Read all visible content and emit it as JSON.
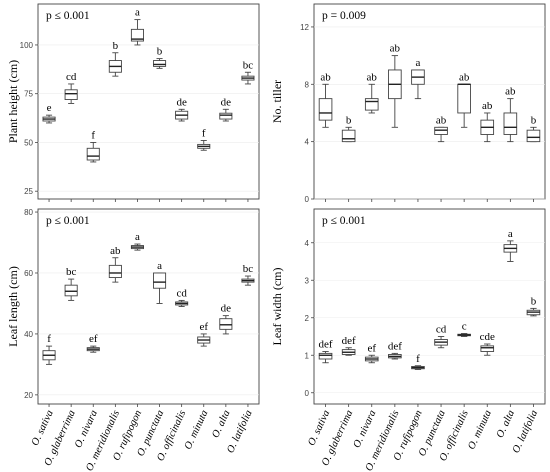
{
  "chart_data": [
    {
      "type": "box",
      "ylabel": "Plant height (cm)",
      "annotation": "p ≤ 0.001",
      "ylim": [
        21,
        121
      ],
      "yticks": [
        25,
        50,
        75,
        100
      ],
      "categories": [
        "O. sativa",
        "O. glaberrima",
        "O. nivara",
        "O. meridionalis",
        "O. rufipogon",
        "O. punctata",
        "O. officinalis",
        "O. minuta",
        "O. alta",
        "O. latifolia"
      ],
      "boxes": [
        {
          "min": 60,
          "q1": 61,
          "median": 62,
          "q3": 63,
          "max": 64,
          "letter": "e"
        },
        {
          "min": 70,
          "q1": 72,
          "median": 75,
          "q3": 77,
          "max": 80,
          "letter": "cd"
        },
        {
          "min": 40,
          "q1": 41,
          "median": 43,
          "q3": 47,
          "max": 50,
          "letter": "f"
        },
        {
          "min": 84,
          "q1": 86,
          "median": 89,
          "q3": 92,
          "max": 96,
          "letter": "b"
        },
        {
          "min": 100,
          "q1": 102,
          "median": 103,
          "q3": 108,
          "max": 113,
          "letter": "a"
        },
        {
          "min": 88,
          "q1": 89,
          "median": 90,
          "q3": 92,
          "max": 93,
          "letter": "b"
        },
        {
          "min": 61,
          "q1": 62,
          "median": 64,
          "q3": 66,
          "max": 67,
          "letter": "de"
        },
        {
          "min": 46,
          "q1": 47,
          "median": 48,
          "q3": 49,
          "max": 51,
          "letter": "f"
        },
        {
          "min": 61,
          "q1": 62,
          "median": 64,
          "q3": 65,
          "max": 67,
          "letter": "de"
        },
        {
          "min": 80,
          "q1": 82,
          "median": 83,
          "q3": 84,
          "max": 86,
          "letter": "bc"
        }
      ]
    },
    {
      "type": "box",
      "ylabel": "No. tiller",
      "annotation": "p = 0.009",
      "ylim": [
        0,
        13.6
      ],
      "yticks": [
        0,
        4,
        8,
        12
      ],
      "categories": [
        "O. sativa",
        "O. glaberrima",
        "O. nivara",
        "O. meridionalis",
        "O. rufipogon",
        "O. punctata",
        "O. officinalis",
        "O. minuta",
        "O. alta",
        "O. latifolia"
      ],
      "boxes": [
        {
          "min": 5,
          "q1": 5.5,
          "median": 6,
          "q3": 7,
          "max": 8,
          "letter": "ab"
        },
        {
          "min": 4,
          "q1": 4,
          "median": 4.2,
          "q3": 4.8,
          "max": 5,
          "letter": "b"
        },
        {
          "min": 6,
          "q1": 6.2,
          "median": 6.8,
          "q3": 7,
          "max": 8,
          "letter": "ab"
        },
        {
          "min": 5,
          "q1": 7,
          "median": 8,
          "q3": 9,
          "max": 10,
          "letter": "ab"
        },
        {
          "min": 7,
          "q1": 8,
          "median": 8.5,
          "q3": 9,
          "max": 9,
          "letter": "a"
        },
        {
          "min": 4,
          "q1": 4.5,
          "median": 4.8,
          "q3": 5,
          "max": 5,
          "letter": "ab"
        },
        {
          "min": 5,
          "q1": 6,
          "median": 8,
          "q3": 8,
          "max": 8,
          "letter": "ab"
        },
        {
          "min": 4,
          "q1": 4.5,
          "median": 5,
          "q3": 5.5,
          "max": 6,
          "letter": "ab"
        },
        {
          "min": 4,
          "q1": 4.5,
          "median": 5,
          "q3": 6,
          "max": 7,
          "letter": "ab"
        },
        {
          "min": 4,
          "q1": 4,
          "median": 4.3,
          "q3": 4.8,
          "max": 5,
          "letter": "b"
        }
      ]
    },
    {
      "type": "box",
      "ylabel": "Leaf length (cm)",
      "annotation": "p ≤ 0.001",
      "ylim": [
        17,
        81
      ],
      "yticks": [
        20,
        40,
        60,
        80
      ],
      "categories": [
        "O. sativa",
        "O. glaberrima",
        "O. nivara",
        "O. meridionalis",
        "O. rufipogon",
        "O. punctata",
        "O. officinalis",
        "O. minuta",
        "O. alta",
        "O. latifolia"
      ],
      "boxes": [
        {
          "min": 30,
          "q1": 31.5,
          "median": 33,
          "q3": 34.5,
          "max": 36,
          "letter": "f"
        },
        {
          "min": 51,
          "q1": 52.5,
          "median": 54,
          "q3": 56,
          "max": 58,
          "letter": "bc"
        },
        {
          "min": 34,
          "q1": 34.5,
          "median": 35,
          "q3": 35.5,
          "max": 36,
          "letter": "ef"
        },
        {
          "min": 57,
          "q1": 58.5,
          "median": 60,
          "q3": 62.5,
          "max": 65,
          "letter": "ab"
        },
        {
          "min": 67.5,
          "q1": 68,
          "median": 68.5,
          "q3": 69,
          "max": 69.5,
          "letter": "a"
        },
        {
          "min": 50,
          "q1": 55,
          "median": 57,
          "q3": 60,
          "max": 60,
          "letter": "a"
        },
        {
          "min": 49,
          "q1": 49.5,
          "median": 50,
          "q3": 50.5,
          "max": 51,
          "letter": "cd"
        },
        {
          "min": 36,
          "q1": 37,
          "median": 38,
          "q3": 39,
          "max": 40,
          "letter": "ef"
        },
        {
          "min": 40,
          "q1": 41.5,
          "median": 43,
          "q3": 45,
          "max": 46,
          "letter": "de"
        },
        {
          "min": 56,
          "q1": 57,
          "median": 57.5,
          "q3": 58,
          "max": 59,
          "letter": "bc"
        }
      ]
    },
    {
      "type": "box",
      "ylabel": "Leaf width (cm)",
      "annotation": "p ≤ 0.001",
      "ylim": [
        -0.3,
        4.9
      ],
      "yticks": [
        0,
        1,
        2,
        3,
        4
      ],
      "categories": [
        "O. sativa",
        "O. glaberrima",
        "O. nivara",
        "O. meridionalis",
        "O. rufipogon",
        "O. punctata",
        "O. officinalis",
        "O. minuta",
        "O. alta",
        "O. latifolia"
      ],
      "boxes": [
        {
          "min": 0.8,
          "q1": 0.9,
          "median": 1.0,
          "q3": 1.05,
          "max": 1.1,
          "letter": "def"
        },
        {
          "min": 1.0,
          "q1": 1.02,
          "median": 1.08,
          "q3": 1.15,
          "max": 1.2,
          "letter": "def"
        },
        {
          "min": 0.8,
          "q1": 0.85,
          "median": 0.9,
          "q3": 0.95,
          "max": 1.0,
          "letter": "ef"
        },
        {
          "min": 0.9,
          "q1": 0.93,
          "median": 0.97,
          "q3": 1.02,
          "max": 1.05,
          "letter": "def"
        },
        {
          "min": 0.62,
          "q1": 0.64,
          "median": 0.67,
          "q3": 0.7,
          "max": 0.72,
          "letter": "f"
        },
        {
          "min": 1.2,
          "q1": 1.27,
          "median": 1.35,
          "q3": 1.42,
          "max": 1.5,
          "letter": "cd"
        },
        {
          "min": 1.5,
          "q1": 1.52,
          "median": 1.54,
          "q3": 1.56,
          "max": 1.58,
          "letter": "c"
        },
        {
          "min": 1.0,
          "q1": 1.1,
          "median": 1.2,
          "q3": 1.25,
          "max": 1.3,
          "letter": "cde"
        },
        {
          "min": 3.5,
          "q1": 3.75,
          "median": 3.85,
          "q3": 3.95,
          "max": 4.05,
          "letter": "a"
        },
        {
          "min": 2.05,
          "q1": 2.08,
          "median": 2.15,
          "q3": 2.2,
          "max": 2.25,
          "letter": "b"
        }
      ]
    }
  ]
}
